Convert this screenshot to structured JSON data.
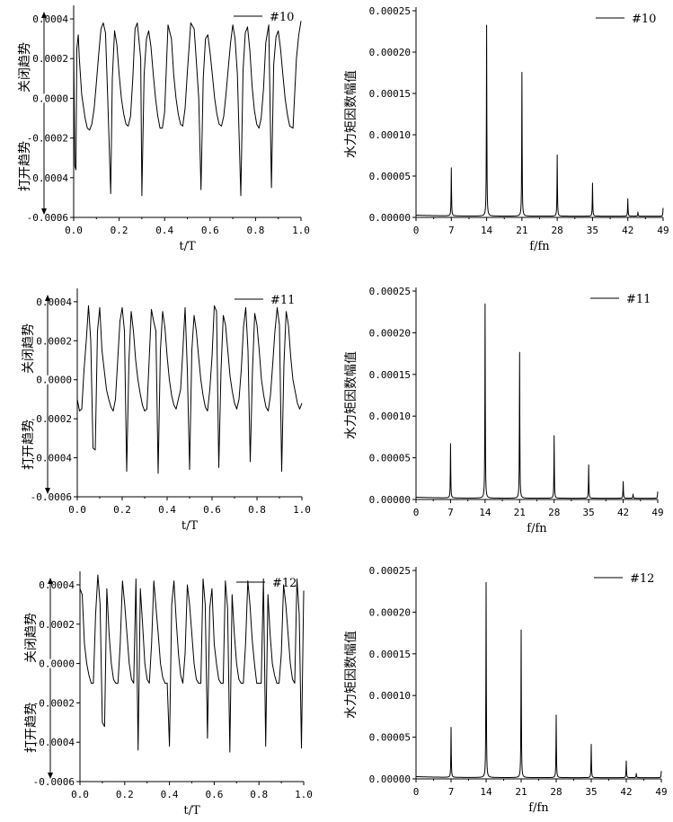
{
  "chart_data": [
    {
      "id": "t10",
      "type": "line",
      "xlabel": "t/T",
      "ylabel_close": "关闭趋势",
      "ylabel_open": "打开趋势",
      "xlim": [
        0,
        1
      ],
      "ylim": [
        -0.0006,
        0.00045
      ],
      "xticks": [
        "0.0",
        "0.2",
        "0.4",
        "0.6",
        "0.8",
        "1.0"
      ],
      "yticks": [
        "0.0004",
        "0.0002",
        "0.0000",
        "-0.0002",
        "-0.0004",
        "-0.0006"
      ],
      "series": [
        {
          "name": "#10",
          "x": [
            0.0,
            0.005,
            0.01,
            0.014,
            0.02,
            0.025,
            0.035,
            0.05,
            0.06,
            0.07,
            0.08,
            0.09,
            0.1,
            0.11,
            0.12,
            0.13,
            0.14,
            0.15,
            0.163,
            0.17,
            0.18,
            0.19,
            0.2,
            0.21,
            0.22,
            0.23,
            0.24,
            0.25,
            0.26,
            0.27,
            0.28,
            0.295,
            0.3,
            0.31,
            0.32,
            0.33,
            0.34,
            0.35,
            0.36,
            0.37,
            0.38,
            0.39,
            0.4,
            0.415,
            0.43,
            0.44,
            0.45,
            0.46,
            0.47,
            0.48,
            0.49,
            0.5,
            0.515,
            0.53,
            0.54,
            0.55,
            0.56,
            0.57,
            0.58,
            0.59,
            0.6,
            0.61,
            0.62,
            0.63,
            0.64,
            0.65,
            0.66,
            0.67,
            0.68,
            0.69,
            0.7,
            0.71,
            0.72,
            0.735,
            0.745,
            0.755,
            0.765,
            0.775,
            0.785,
            0.795,
            0.805,
            0.815,
            0.825,
            0.835,
            0.845,
            0.858,
            0.87,
            0.88,
            0.89,
            0.9,
            0.91,
            0.92,
            0.93,
            0.94,
            0.95,
            0.965,
            0.98,
            0.99,
            1.0
          ],
          "values": [
            0.00025,
            -0.00034,
            -0.00036,
            0.00025,
            0.00032,
            0.0002,
            2e-05,
            -0.0001,
            -0.00015,
            -0.00016,
            -0.00013,
            -5e-05,
            8e-05,
            0.00022,
            0.00035,
            0.00038,
            0.00033,
            0.0,
            -0.00048,
            0.0001,
            0.00034,
            0.00027,
            0.00012,
            0.0,
            -8e-05,
            -0.00013,
            -0.00014,
            -9e-05,
            0.0001,
            0.00035,
            0.00038,
            0.0002,
            -0.00049,
            0.00012,
            0.0003,
            0.00034,
            0.00026,
            0.00012,
            0.0,
            -9e-05,
            -0.00015,
            -0.00015,
            -7e-05,
            0.00037,
            0.0003,
            0.00012,
            0.0,
            -8e-05,
            -0.00013,
            -0.00014,
            -5e-05,
            0.00013,
            0.00038,
            0.00035,
            0.00018,
            0.0,
            -0.00046,
            0.0001,
            0.0003,
            0.00032,
            0.00023,
            0.00012,
            0.0,
            -8e-05,
            -0.00013,
            -0.00014,
            -9e-05,
            2e-05,
            0.00015,
            0.00028,
            0.00037,
            0.0003,
            0.00012,
            -0.00049,
            0.00014,
            0.00033,
            0.00036,
            0.00024,
            6e-05,
            -6e-05,
            -0.00013,
            -0.00015,
            -0.0001,
            5e-05,
            0.00028,
            0.00037,
            -0.00045,
            0.00017,
            0.00031,
            0.00034,
            0.00025,
            0.00012,
            0.0,
            -8e-05,
            -0.00014,
            -0.00015,
            0.0002,
            0.00032,
            0.00039
          ]
        }
      ]
    },
    {
      "id": "f10",
      "type": "line",
      "xlabel": "f/fn",
      "ylabel": "水力矩因数幅值",
      "xlim": [
        0,
        49
      ],
      "ylim": [
        0,
        0.00025
      ],
      "xticks": [
        "0",
        "7",
        "14",
        "21",
        "28",
        "35",
        "42",
        "49"
      ],
      "yticks": [
        "0.00025",
        "0.00020",
        "0.00015",
        "0.00010",
        "0.00005",
        "0.00000"
      ],
      "series": [
        {
          "name": "#10",
          "peaks": [
            [
              7,
              5.8e-05
            ],
            [
              14,
              0.000231
            ],
            [
              21,
              0.000174
            ],
            [
              28,
              7.4e-05
            ],
            [
              35,
              4e-05
            ],
            [
              42,
              2.1e-05
            ],
            [
              44,
              5e-06
            ],
            [
              49,
              1e-05
            ]
          ]
        }
      ]
    },
    {
      "id": "t11",
      "type": "line",
      "xlabel": "t/T",
      "ylabel_close": "关闭趋势",
      "ylabel_open": "打开趋势",
      "xlim": [
        0,
        1
      ],
      "ylim": [
        -0.0006,
        0.00045
      ],
      "xticks": [
        "0.0",
        "0.2",
        "0.4",
        "0.6",
        "0.8",
        "1.0"
      ],
      "yticks": [
        "0.0004",
        "0.0002",
        "0.0000",
        "-0.0002",
        "-0.0004",
        "-0.0006"
      ],
      "series": [
        {
          "name": "#11",
          "x": [
            0.0,
            0.01,
            0.02,
            0.03,
            0.04,
            0.05,
            0.06,
            0.07,
            0.08,
            0.09,
            0.1,
            0.11,
            0.12,
            0.13,
            0.14,
            0.15,
            0.16,
            0.17,
            0.18,
            0.19,
            0.2,
            0.21,
            0.22,
            0.23,
            0.24,
            0.25,
            0.26,
            0.27,
            0.28,
            0.29,
            0.3,
            0.31,
            0.32,
            0.33,
            0.34,
            0.35,
            0.36,
            0.37,
            0.38,
            0.39,
            0.4,
            0.41,
            0.42,
            0.43,
            0.44,
            0.45,
            0.46,
            0.47,
            0.48,
            0.49,
            0.5,
            0.51,
            0.52,
            0.53,
            0.54,
            0.55,
            0.56,
            0.57,
            0.58,
            0.59,
            0.6,
            0.61,
            0.62,
            0.63,
            0.64,
            0.65,
            0.66,
            0.67,
            0.68,
            0.69,
            0.7,
            0.71,
            0.72,
            0.73,
            0.74,
            0.75,
            0.76,
            0.77,
            0.78,
            0.79,
            0.8,
            0.81,
            0.82,
            0.83,
            0.84,
            0.85,
            0.86,
            0.87,
            0.88,
            0.89,
            0.9,
            0.91,
            0.92,
            0.93,
            0.94,
            0.95,
            0.96,
            0.97,
            0.98,
            0.99,
            1.0
          ],
          "values": [
            -0.0001,
            -0.00016,
            -0.00015,
            5e-05,
            0.0002,
            0.00038,
            0.0002,
            -0.00035,
            -0.00036,
            0.00025,
            0.00037,
            0.00015,
            5e-05,
            -5e-05,
            -0.0001,
            -0.00014,
            -0.00016,
            -0.0001,
            0.0001,
            0.0003,
            0.00037,
            0.00025,
            -0.00047,
            0.0001,
            0.00035,
            0.00025,
            0.0001,
            0.0,
            -7e-05,
            -0.00013,
            -0.00016,
            -0.00015,
            0.0001,
            0.00036,
            0.0003,
            0.00025,
            -0.00048,
            0.00015,
            0.00035,
            0.00027,
            0.00012,
            0.0,
            -8e-05,
            -0.00013,
            -0.00015,
            -0.0001,
            -5e-05,
            0.00015,
            0.00037,
            5e-05,
            -0.00046,
            0.00015,
            0.00033,
            0.00025,
            0.00012,
            0.0,
            -8e-05,
            -0.00014,
            -0.00016,
            -5e-05,
            0.00012,
            0.00038,
            0.00035,
            -0.00045,
            5e-05,
            0.00033,
            0.00028,
            0.00015,
            2e-05,
            -6e-05,
            -0.00012,
            -0.00015,
            -0.0001,
            5e-05,
            0.00027,
            0.00037,
            0.00015,
            -0.00042,
            5e-05,
            0.00034,
            0.00028,
            0.00015,
            0.0,
            -8e-05,
            -0.00014,
            -0.00016,
            -8e-05,
            8e-05,
            0.00025,
            0.00037,
            0.00028,
            -0.00047,
            8e-05,
            0.00035,
            0.00028,
            0.00012,
            0.0,
            -6e-05,
            -0.00012,
            -0.00015,
            -0.00012
          ]
        }
      ]
    },
    {
      "id": "f11",
      "type": "line",
      "xlabel": "f/fn",
      "ylabel": "水力矩因数幅值",
      "xlim": [
        0,
        49
      ],
      "ylim": [
        0,
        0.00025
      ],
      "xticks": [
        "0",
        "7",
        "14",
        "21",
        "28",
        "35",
        "42",
        "49"
      ],
      "yticks": [
        "0.00025",
        "0.00020",
        "0.00015",
        "0.00010",
        "0.00005",
        "0.00000"
      ],
      "series": [
        {
          "name": "#11",
          "peaks": [
            [
              7,
              6.5e-05
            ],
            [
              14,
              0.000233
            ],
            [
              21,
              0.000175
            ],
            [
              28,
              7.5e-05
            ],
            [
              35,
              4e-05
            ],
            [
              42,
              2e-05
            ],
            [
              44,
              5e-06
            ],
            [
              49,
              8e-06
            ]
          ]
        }
      ]
    },
    {
      "id": "t12",
      "type": "line",
      "xlabel": "t/T",
      "ylabel_close": "关闭趋势",
      "ylabel_open": "打开趋势",
      "xlim": [
        0,
        1
      ],
      "ylim": [
        -0.0006,
        0.00045
      ],
      "xticks": [
        "0.0",
        "0.2",
        "0.4",
        "0.6",
        "0.8",
        "1.0"
      ],
      "yticks": [
        "0.0004",
        "0.0002",
        "0.0000",
        "-0.0002",
        "-0.0004",
        "-0.0006"
      ],
      "series": [
        {
          "name": "#12",
          "x": [
            0.0,
            0.01,
            0.02,
            0.03,
            0.04,
            0.05,
            0.06,
            0.07,
            0.08,
            0.09,
            0.1,
            0.11,
            0.12,
            0.13,
            0.14,
            0.15,
            0.16,
            0.17,
            0.18,
            0.19,
            0.2,
            0.21,
            0.22,
            0.23,
            0.24,
            0.25,
            0.26,
            0.27,
            0.28,
            0.29,
            0.3,
            0.31,
            0.32,
            0.33,
            0.34,
            0.35,
            0.36,
            0.37,
            0.38,
            0.39,
            0.4,
            0.41,
            0.42,
            0.43,
            0.44,
            0.45,
            0.46,
            0.47,
            0.48,
            0.49,
            0.5,
            0.51,
            0.52,
            0.53,
            0.54,
            0.55,
            0.56,
            0.57,
            0.58,
            0.59,
            0.6,
            0.61,
            0.62,
            0.63,
            0.64,
            0.65,
            0.66,
            0.67,
            0.68,
            0.69,
            0.7,
            0.71,
            0.72,
            0.73,
            0.74,
            0.75,
            0.76,
            0.77,
            0.78,
            0.79,
            0.8,
            0.81,
            0.82,
            0.83,
            0.84,
            0.85,
            0.86,
            0.87,
            0.88,
            0.89,
            0.9,
            0.91,
            0.92,
            0.93,
            0.94,
            0.95,
            0.96,
            0.97,
            0.98,
            0.99,
            1.0
          ],
          "values": [
            0.00038,
            0.00035,
            0.0001,
            0.0,
            -6e-05,
            -0.0001,
            -0.0001,
            0.00025,
            0.00045,
            0.0003,
            -0.0003,
            -0.00032,
            0.00038,
            0.00015,
            0.0,
            -8e-05,
            -0.0001,
            -0.0001,
            0.0001,
            0.00042,
            0.0003,
            0.00015,
            0.0,
            -8e-05,
            -0.0001,
            0.00043,
            -0.00044,
            0.00038,
            0.0002,
            0.0,
            -8e-05,
            -0.0001,
            0.0001,
            0.00042,
            0.00028,
            0.00015,
            0.0,
            -7e-05,
            -0.0001,
            -0.0001,
            -0.00042,
            0.0003,
            0.00042,
            0.00022,
            5e-05,
            -6e-05,
            -0.0001,
            5e-05,
            0.0004,
            0.0003,
            0.00015,
            0.0,
            -8e-05,
            -0.0001,
            -0.0001,
            0.00043,
            0.0003,
            -0.00038,
            0.00028,
            0.00038,
            0.0001,
            0.0,
            -8e-05,
            -0.0001,
            -0.0001,
            0.00042,
            0.00028,
            -0.00045,
            0.00035,
            0.00015,
            0.0,
            -8e-05,
            -0.0001,
            -0.0001,
            0.0001,
            0.00042,
            0.0003,
            0.00012,
            0.0,
            -0.0001,
            -0.0001,
            -0.0001,
            0.00043,
            -0.00042,
            0.00035,
            0.00015,
            0.0,
            -6e-05,
            -0.0001,
            -0.0001,
            5e-05,
            0.0004,
            0.0003,
            0.00015,
            0.0,
            -8e-05,
            -0.0001,
            0.00043,
            0.00025,
            -0.00043,
            0.00037
          ]
        }
      ]
    },
    {
      "id": "f12",
      "type": "line",
      "xlabel": "f/fn",
      "ylabel": "水力矩因数幅值",
      "xlim": [
        0,
        49
      ],
      "ylim": [
        0,
        0.00025
      ],
      "xticks": [
        "0",
        "7",
        "14",
        "21",
        "28",
        "35",
        "42",
        "49"
      ],
      "yticks": [
        "0.00025",
        "0.00020",
        "0.00015",
        "0.00010",
        "0.00005",
        "0.00000"
      ],
      "series": [
        {
          "name": "#12",
          "peaks": [
            [
              7,
              6e-05
            ],
            [
              14,
              0.000234
            ],
            [
              21,
              0.000177
            ],
            [
              28,
              7.5e-05
            ],
            [
              35,
              4e-05
            ],
            [
              42,
              2e-05
            ],
            [
              44,
              5e-06
            ],
            [
              49,
              8e-06
            ]
          ]
        }
      ]
    }
  ]
}
